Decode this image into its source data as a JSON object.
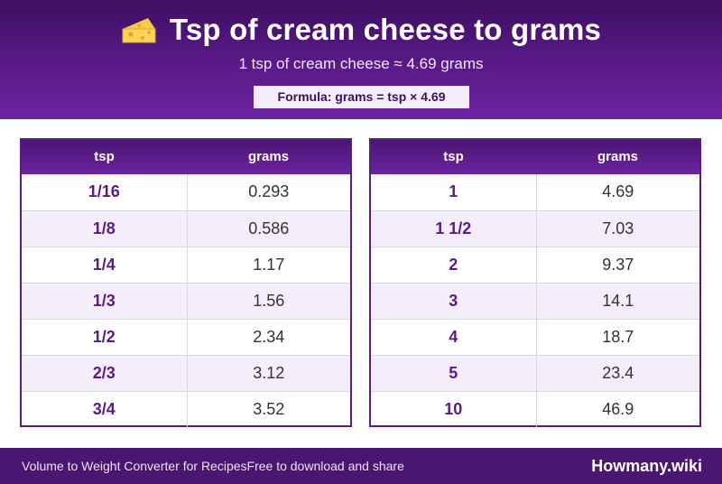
{
  "header": {
    "icon": "cheese-icon",
    "title": "Tsp of cream cheese to grams",
    "subtitle": "1 tsp of cream cheese ≈ 4.69 grams",
    "formula": "Formula: grams = tsp × 4.69"
  },
  "tables": {
    "left": {
      "col1_header": "tsp",
      "col2_header": "grams",
      "rows": [
        {
          "tsp": "1/16",
          "grams": "0.293"
        },
        {
          "tsp": "1/8",
          "grams": "0.586"
        },
        {
          "tsp": "1/4",
          "grams": "1.17"
        },
        {
          "tsp": "1/3",
          "grams": "1.56"
        },
        {
          "tsp": "1/2",
          "grams": "2.34"
        },
        {
          "tsp": "2/3",
          "grams": "3.12"
        },
        {
          "tsp": "3/4",
          "grams": "3.52"
        }
      ]
    },
    "right": {
      "col1_header": "tsp",
      "col2_header": "grams",
      "rows": [
        {
          "tsp": "1",
          "grams": "4.69"
        },
        {
          "tsp": "1 1/2",
          "grams": "7.03"
        },
        {
          "tsp": "2",
          "grams": "9.37"
        },
        {
          "tsp": "3",
          "grams": "14.1"
        },
        {
          "tsp": "4",
          "grams": "18.7"
        },
        {
          "tsp": "5",
          "grams": "23.4"
        },
        {
          "tsp": "10",
          "grams": "46.9"
        }
      ]
    }
  },
  "footer": {
    "left_text": "Volume to Weight Converter for RecipesFree to download and share",
    "brand": "Howmany.wiki"
  },
  "colors": {
    "primary": "#5a1a87",
    "header_dark": "#3e0f63",
    "row_alt": "#f3eef9",
    "footer": "#4a1672"
  }
}
